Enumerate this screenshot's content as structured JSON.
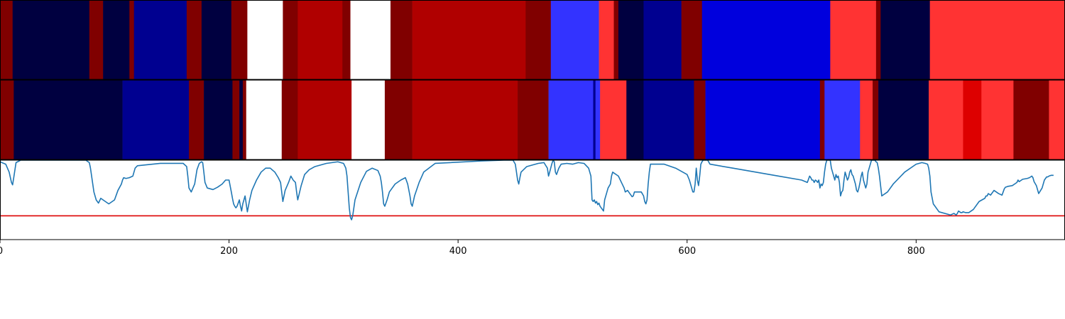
{
  "chart_data": {
    "type": "heatmap",
    "title": "",
    "xlabel": "",
    "ylabel": "",
    "xlim": [
      0,
      930
    ],
    "x_ticks": [
      0,
      200,
      400,
      600,
      800
    ],
    "x_tick_labels": [
      "0",
      "200",
      "400",
      "600",
      "800"
    ],
    "grid": false,
    "legend": "none",
    "rows": [
      {
        "segments": [
          {
            "start": 0,
            "end": 11,
            "color": "#800000"
          },
          {
            "start": 11,
            "end": 78,
            "color": "#000040"
          },
          {
            "start": 78,
            "end": 90,
            "color": "#800000"
          },
          {
            "start": 90,
            "end": 113,
            "color": "#000040"
          },
          {
            "start": 113,
            "end": 117,
            "color": "#800000"
          },
          {
            "start": 117,
            "end": 163,
            "color": "#000090"
          },
          {
            "start": 163,
            "end": 176,
            "color": "#800000"
          },
          {
            "start": 176,
            "end": 202,
            "color": "#000040"
          },
          {
            "start": 202,
            "end": 216,
            "color": "#800000"
          },
          {
            "start": 216,
            "end": 247,
            "color": "#ffffff"
          },
          {
            "start": 247,
            "end": 260,
            "color": "#800000"
          },
          {
            "start": 260,
            "end": 299,
            "color": "#b00000"
          },
          {
            "start": 299,
            "end": 306,
            "color": "#800000"
          },
          {
            "start": 306,
            "end": 341,
            "color": "#ffffff"
          },
          {
            "start": 341,
            "end": 360,
            "color": "#800000"
          },
          {
            "start": 360,
            "end": 459,
            "color": "#b00000"
          },
          {
            "start": 459,
            "end": 481,
            "color": "#800000"
          },
          {
            "start": 481,
            "end": 523,
            "color": "#3333ff"
          },
          {
            "start": 523,
            "end": 536,
            "color": "#ff3333"
          },
          {
            "start": 536,
            "end": 540,
            "color": "#800000"
          },
          {
            "start": 540,
            "end": 562,
            "color": "#000040"
          },
          {
            "start": 562,
            "end": 595,
            "color": "#000090"
          },
          {
            "start": 595,
            "end": 613,
            "color": "#800000"
          },
          {
            "start": 613,
            "end": 725,
            "color": "#0000dd"
          },
          {
            "start": 725,
            "end": 765,
            "color": "#ff3333"
          },
          {
            "start": 765,
            "end": 769,
            "color": "#800000"
          },
          {
            "start": 769,
            "end": 812,
            "color": "#000040"
          },
          {
            "start": 812,
            "end": 930,
            "color": "#ff3333"
          }
        ]
      },
      {
        "segments": [
          {
            "start": 0,
            "end": 12,
            "color": "#800000"
          },
          {
            "start": 12,
            "end": 107,
            "color": "#000040"
          },
          {
            "start": 107,
            "end": 165,
            "color": "#000090"
          },
          {
            "start": 165,
            "end": 178,
            "color": "#800000"
          },
          {
            "start": 178,
            "end": 203,
            "color": "#000040"
          },
          {
            "start": 203,
            "end": 209,
            "color": "#800000"
          },
          {
            "start": 209,
            "end": 212,
            "color": "#000040"
          },
          {
            "start": 212,
            "end": 215,
            "color": "#800000"
          },
          {
            "start": 215,
            "end": 246,
            "color": "#ffffff"
          },
          {
            "start": 246,
            "end": 260,
            "color": "#800000"
          },
          {
            "start": 260,
            "end": 307,
            "color": "#b00000"
          },
          {
            "start": 307,
            "end": 336,
            "color": "#ffffff"
          },
          {
            "start": 336,
            "end": 360,
            "color": "#800000"
          },
          {
            "start": 360,
            "end": 452,
            "color": "#b00000"
          },
          {
            "start": 452,
            "end": 479,
            "color": "#800000"
          },
          {
            "start": 479,
            "end": 518,
            "color": "#3333ff"
          },
          {
            "start": 518,
            "end": 520,
            "color": "#000090"
          },
          {
            "start": 520,
            "end": 524,
            "color": "#3333ff"
          },
          {
            "start": 524,
            "end": 547,
            "color": "#ff3333"
          },
          {
            "start": 547,
            "end": 562,
            "color": "#000040"
          },
          {
            "start": 562,
            "end": 606,
            "color": "#000090"
          },
          {
            "start": 606,
            "end": 616,
            "color": "#800000"
          },
          {
            "start": 616,
            "end": 716,
            "color": "#0000dd"
          },
          {
            "start": 716,
            "end": 720,
            "color": "#800000"
          },
          {
            "start": 720,
            "end": 751,
            "color": "#3333ff"
          },
          {
            "start": 751,
            "end": 762,
            "color": "#ff3333"
          },
          {
            "start": 762,
            "end": 767,
            "color": "#800000"
          },
          {
            "start": 767,
            "end": 811,
            "color": "#000040"
          },
          {
            "start": 811,
            "end": 841,
            "color": "#ff3333"
          },
          {
            "start": 841,
            "end": 857,
            "color": "#dd0000"
          },
          {
            "start": 857,
            "end": 885,
            "color": "#ff3333"
          },
          {
            "start": 885,
            "end": 916,
            "color": "#800000"
          },
          {
            "start": 916,
            "end": 930,
            "color": "#ff3333"
          }
        ]
      }
    ],
    "line_panel": {
      "ylim": [
        0,
        1
      ],
      "threshold": 0.3,
      "threshold_color": "#dd0000",
      "line_color": "#1f77b4",
      "x": [
        0,
        5,
        8,
        10,
        11,
        12,
        14,
        18,
        30,
        60,
        75,
        78,
        79,
        80,
        82,
        84,
        86,
        88,
        90,
        95,
        100,
        103,
        106,
        107,
        108,
        110,
        113,
        116,
        118,
        120,
        140,
        160,
        163,
        164,
        165,
        167,
        170,
        172,
        174,
        176,
        177,
        178,
        179,
        181,
        186,
        190,
        194,
        197,
        200,
        202,
        203,
        204,
        205,
        206,
        207,
        209,
        210,
        211,
        212,
        213,
        214,
        215,
        216,
        218,
        220,
        224,
        228,
        232,
        236,
        240,
        243,
        245,
        246,
        247,
        249,
        252,
        254,
        256,
        258,
        259,
        260,
        263,
        266,
        270,
        275,
        285,
        295,
        300,
        302,
        303,
        304,
        305,
        306,
        307,
        308,
        310,
        315,
        320,
        325,
        330,
        332,
        333,
        334,
        335,
        336,
        338,
        340,
        345,
        350,
        354,
        356,
        358,
        359,
        360,
        362,
        366,
        370,
        380,
        420,
        440,
        448,
        450,
        451,
        452,
        453,
        454,
        455,
        460,
        470,
        475,
        478,
        479,
        480,
        482,
        483,
        484,
        485,
        486,
        488,
        490,
        495,
        500,
        505,
        510,
        514,
        516,
        517,
        518,
        519,
        520,
        521,
        522,
        523,
        524,
        525,
        526,
        527,
        528,
        530,
        531,
        533,
        534,
        535,
        540,
        545,
        546,
        548,
        549,
        550,
        551,
        552,
        553,
        554,
        556,
        558,
        560,
        562,
        563,
        564,
        565,
        566,
        567,
        568,
        570,
        580,
        590,
        600,
        602,
        604,
        605,
        606,
        607,
        608,
        609,
        610,
        611,
        612,
        613,
        614,
        615,
        616,
        617,
        618,
        620,
        640,
        680,
        700,
        705,
        707,
        708,
        709,
        710,
        711,
        712,
        713,
        714,
        715,
        716,
        717,
        718,
        719,
        720,
        721,
        722,
        723,
        724,
        725,
        726,
        727,
        728,
        729,
        730,
        731,
        732,
        733,
        734,
        735,
        736,
        737,
        738,
        739,
        740,
        741,
        742,
        743,
        744,
        745,
        746,
        747,
        748,
        749,
        750,
        751,
        752,
        753,
        754,
        755,
        756,
        757,
        758,
        759,
        760,
        761,
        762,
        763,
        764,
        765,
        766,
        767,
        768,
        770,
        775,
        780,
        790,
        800,
        805,
        808,
        810,
        811,
        812,
        813,
        815,
        820,
        830,
        833,
        835,
        836,
        837,
        838,
        839,
        840,
        841,
        843,
        846,
        850,
        855,
        860,
        861,
        862,
        863,
        865,
        868,
        870,
        872,
        875,
        876,
        877,
        878,
        880,
        884,
        886,
        888,
        889,
        890,
        893,
        897,
        899,
        901,
        902,
        903,
        905,
        907,
        910,
        912,
        913,
        914,
        915,
        916,
        918,
        920,
        925,
        930
      ],
      "y": [
        0.98,
        0.95,
        0.85,
        0.72,
        0.69,
        0.78,
        0.97,
        1.0,
        1.0,
        1.0,
        1.0,
        0.97,
        0.9,
        0.8,
        0.6,
        0.5,
        0.46,
        0.52,
        0.5,
        0.45,
        0.5,
        0.62,
        0.7,
        0.75,
        0.78,
        0.77,
        0.78,
        0.8,
        0.9,
        0.93,
        0.96,
        0.96,
        0.92,
        0.8,
        0.65,
        0.6,
        0.7,
        0.88,
        0.96,
        0.98,
        0.97,
        0.85,
        0.72,
        0.65,
        0.63,
        0.66,
        0.7,
        0.75,
        0.75,
        0.6,
        0.52,
        0.45,
        0.42,
        0.4,
        0.42,
        0.5,
        0.42,
        0.36,
        0.45,
        0.5,
        0.55,
        0.45,
        0.35,
        0.5,
        0.62,
        0.75,
        0.85,
        0.9,
        0.9,
        0.85,
        0.78,
        0.72,
        0.6,
        0.48,
        0.62,
        0.72,
        0.8,
        0.75,
        0.72,
        0.6,
        0.5,
        0.68,
        0.82,
        0.88,
        0.92,
        0.96,
        0.98,
        0.96,
        0.9,
        0.8,
        0.6,
        0.4,
        0.28,
        0.25,
        0.3,
        0.5,
        0.72,
        0.86,
        0.9,
        0.87,
        0.8,
        0.72,
        0.6,
        0.45,
        0.42,
        0.5,
        0.6,
        0.7,
        0.75,
        0.78,
        0.7,
        0.55,
        0.45,
        0.42,
        0.55,
        0.72,
        0.85,
        0.96,
        0.99,
        1.0,
        1.0,
        0.95,
        0.85,
        0.75,
        0.7,
        0.78,
        0.85,
        0.92,
        0.96,
        0.97,
        0.9,
        0.8,
        0.85,
        0.96,
        1.0,
        0.98,
        0.85,
        0.82,
        0.9,
        0.95,
        0.96,
        0.95,
        0.97,
        0.96,
        0.9,
        0.8,
        0.5,
        0.48,
        0.5,
        0.46,
        0.48,
        0.44,
        0.46,
        0.42,
        0.4,
        0.38,
        0.36,
        0.5,
        0.6,
        0.65,
        0.7,
        0.8,
        0.85,
        0.8,
        0.65,
        0.6,
        0.62,
        0.6,
        0.58,
        0.56,
        0.54,
        0.55,
        0.6,
        0.6,
        0.6,
        0.6,
        0.55,
        0.48,
        0.45,
        0.5,
        0.7,
        0.85,
        0.95,
        0.95,
        0.95,
        0.9,
        0.82,
        0.75,
        0.65,
        0.6,
        0.6,
        0.7,
        0.9,
        0.75,
        0.68,
        0.8,
        0.95,
        0.98,
        1.0,
        1.0,
        1.0,
        1.0,
        1.0,
        0.95,
        0.9,
        0.8,
        0.75,
        0.72,
        0.8,
        0.78,
        0.75,
        0.75,
        0.72,
        0.75,
        0.74,
        0.72,
        0.75,
        0.65,
        0.7,
        0.68,
        0.72,
        0.85,
        0.95,
        1.0,
        1.0,
        1.0,
        1.0,
        0.9,
        0.85,
        0.8,
        0.75,
        0.82,
        0.78,
        0.8,
        0.72,
        0.55,
        0.6,
        0.62,
        0.75,
        0.85,
        0.8,
        0.75,
        0.78,
        0.85,
        0.88,
        0.82,
        0.8,
        0.75,
        0.7,
        0.62,
        0.6,
        0.65,
        0.72,
        0.8,
        0.85,
        0.75,
        0.7,
        0.65,
        0.7,
        0.85,
        0.9,
        0.95,
        1.0,
        1.0,
        1.0,
        1.0,
        0.98,
        0.97,
        0.9,
        0.8,
        0.55,
        0.6,
        0.7,
        0.85,
        0.95,
        0.97,
        0.96,
        0.95,
        0.9,
        0.8,
        0.6,
        0.45,
        0.35,
        0.31,
        0.33,
        0.31,
        0.33,
        0.36,
        0.35,
        0.34,
        0.34,
        0.35,
        0.34,
        0.34,
        0.38,
        0.48,
        0.52,
        0.55,
        0.55,
        0.58,
        0.56,
        0.62,
        0.6,
        0.58,
        0.56,
        0.6,
        0.64,
        0.66,
        0.67,
        0.68,
        0.7,
        0.72,
        0.75,
        0.73,
        0.76,
        0.77,
        0.78,
        0.8,
        0.78,
        0.73,
        0.68,
        0.58,
        0.65,
        0.75,
        0.77,
        0.79,
        0.79,
        0.8,
        0.81,
        0.81
      ]
    }
  }
}
